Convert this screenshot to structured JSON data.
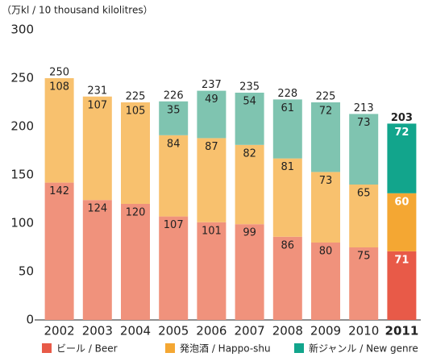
{
  "chart_data": {
    "type": "stacked_bar",
    "y_axis_label": "（万kl / 10 thousand kilolitres）",
    "categories": [
      "2002",
      "2003",
      "2004",
      "2005",
      "2006",
      "2007",
      "2008",
      "2009",
      "2010",
      "2011"
    ],
    "highlight_category": "2011",
    "series": [
      {
        "name": "ビール / Beer",
        "color": "#f0927c",
        "highlight_color": "#e85a48",
        "values": [
          142,
          124,
          120,
          107,
          101,
          99,
          86,
          80,
          75,
          71
        ]
      },
      {
        "name": "発泡酒 / Happo-shu",
        "color": "#f8c16e",
        "highlight_color": "#f4a733",
        "values": [
          108,
          107,
          105,
          84,
          87,
          82,
          81,
          73,
          65,
          60
        ]
      },
      {
        "name": "新ジャンル / New genre",
        "color": "#7fc4b0",
        "highlight_color": "#12a58c",
        "values": [
          null,
          null,
          null,
          35,
          49,
          54,
          61,
          72,
          73,
          72
        ]
      }
    ],
    "totals": [
      250,
      231,
      225,
      226,
      237,
      235,
      228,
      225,
      213,
      203
    ],
    "ylim": [
      0,
      300
    ],
    "yticks": [
      0,
      50,
      100,
      150,
      200,
      250,
      300
    ],
    "grid": false,
    "legend": "bottom"
  }
}
